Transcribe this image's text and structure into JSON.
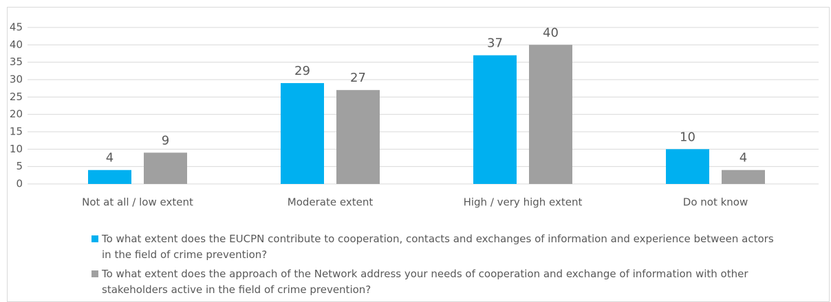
{
  "chart_data": {
    "type": "bar",
    "categories": [
      "Not at all / low extent",
      "Moderate extent",
      "High / very high extent",
      "Do not know"
    ],
    "series": [
      {
        "name": "To what extent does the EUCPN contribute to cooperation, contacts and exchanges of information and experience between actors in the field of crime prevention?",
        "color": "#00b0f0",
        "values": [
          4,
          29,
          37,
          10
        ]
      },
      {
        "name": "To what extent does the approach of the Network address your needs of cooperation and exchange of information with other stakeholders active in the field of crime prevention?",
        "color": "#a0a0a0",
        "values": [
          9,
          27,
          40,
          4
        ]
      }
    ],
    "ylim": [
      0,
      45
    ],
    "yticks": [
      0,
      5,
      10,
      15,
      20,
      25,
      30,
      35,
      40,
      45
    ],
    "grid": true,
    "legend": "bottom"
  }
}
